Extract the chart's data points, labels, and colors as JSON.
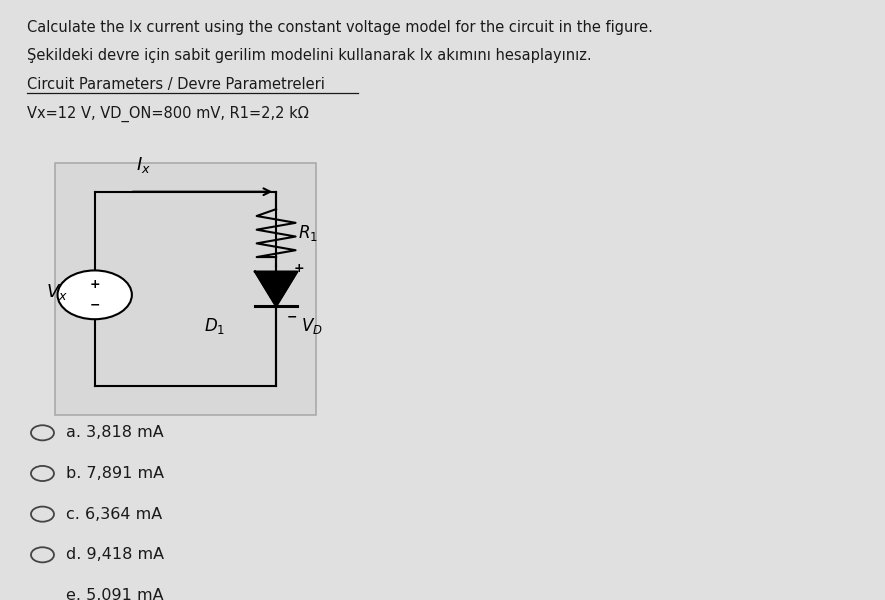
{
  "title_line1": "Calculate the Ix current using the constant voltage model for the circuit in the figure.",
  "title_line2": "Şekildeki devre için sabit gerilim modelini kullanarak Ix akımını hesaplayınız.",
  "section_header": "Circuit Parameters / Devre Parametreleri",
  "params": "Vx=12 V, VD_ON=800 mV, R1=2,2 kΩ",
  "options": [
    "a. 3,818 mA",
    "b. 7,891 mA",
    "c. 6,364 mA",
    "d. 9,418 mA",
    "e. 5,091 mA"
  ],
  "bg_color": "#e0e0e0",
  "circuit_bg": "#dedede",
  "text_color": "#1a1a1a"
}
